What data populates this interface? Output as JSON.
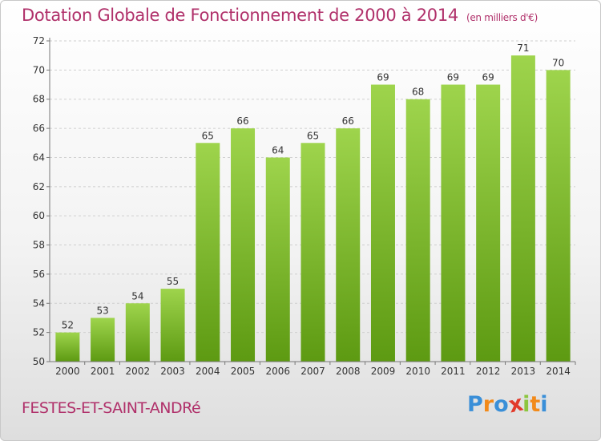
{
  "title": "Dotation Globale de Fonctionnement de 2000 à 2014",
  "unit": "(en milliers d'€)",
  "commune": "FESTES-ET-SAINT-ANDRé",
  "logo": {
    "letters": [
      "P",
      "r",
      "o",
      "x",
      "i",
      "t",
      "i"
    ],
    "colors": [
      "#3a8fd8",
      "#f28a1a",
      "#3a8fd8",
      "#e23a2a",
      "#8cc63f",
      "#f28a1a",
      "#3a8fd8"
    ]
  },
  "colors": {
    "title": "#b0306a",
    "bar_top": "#9ed44c",
    "bar_bottom": "#5d9a12",
    "grid": "#cfcfcf",
    "axis_text": "#333333"
  },
  "chart_data": {
    "type": "bar",
    "categories": [
      "2000",
      "2001",
      "2002",
      "2003",
      "2004",
      "2005",
      "2006",
      "2007",
      "2008",
      "2009",
      "2010",
      "2011",
      "2012",
      "2013",
      "2014"
    ],
    "values": [
      52,
      53,
      54,
      55,
      65,
      66,
      64,
      65,
      66,
      69,
      68,
      69,
      69,
      71,
      70
    ],
    "data_labels": [
      "52",
      "53",
      "54",
      "55",
      "65",
      "66",
      "64",
      "65",
      "66",
      "69",
      "68",
      "69",
      "69",
      "71",
      "70"
    ],
    "ylim": [
      50,
      72
    ],
    "yticks": [
      "50",
      "52",
      "54",
      "56",
      "58",
      "60",
      "62",
      "64",
      "66",
      "68",
      "70",
      "72"
    ],
    "grid": true,
    "legend": "none"
  }
}
